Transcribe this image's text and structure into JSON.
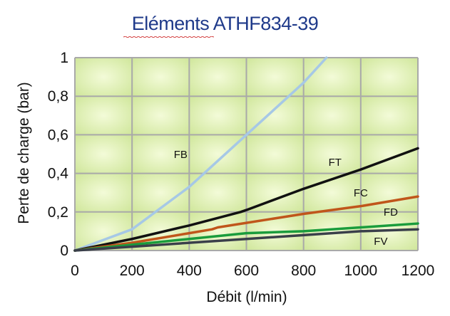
{
  "chart_data": {
    "type": "line",
    "title": "Eléments ATHF834-39",
    "xlabel": "Débit (l/min)",
    "ylabel": "Perte de charge (bar)",
    "xlim": [
      0,
      1200
    ],
    "ylim": [
      0,
      1
    ],
    "x_ticks": [
      0,
      200,
      400,
      600,
      800,
      1000,
      1200
    ],
    "x_tick_labels": [
      "0",
      "200",
      "400",
      "600",
      "800",
      "1000",
      "1200"
    ],
    "y_ticks": [
      0,
      0.2,
      0.4,
      0.6,
      0.8,
      1
    ],
    "y_tick_labels": [
      "0",
      "0,2",
      "0,4",
      "0,6",
      "0,8",
      "1"
    ],
    "grid": true,
    "background_color": "#dff0b0",
    "grid_color": "#a9a9a9",
    "series": [
      {
        "name": "FB",
        "color": "#a6c8e6",
        "label_at": [
          370,
          0.48
        ],
        "x": [
          0,
          200,
          400,
          600,
          800,
          880
        ],
        "y": [
          0,
          0.11,
          0.33,
          0.6,
          0.87,
          1.0
        ]
      },
      {
        "name": "FT",
        "color": "#111111",
        "label_at": [
          910,
          0.44
        ],
        "x": [
          0,
          200,
          400,
          580,
          600,
          800,
          1000,
          1200
        ],
        "y": [
          0,
          0.06,
          0.13,
          0.2,
          0.21,
          0.32,
          0.42,
          0.53
        ]
      },
      {
        "name": "FC",
        "color": "#c0561b",
        "label_at": [
          1000,
          0.28
        ],
        "x": [
          0,
          200,
          400,
          480,
          500,
          800,
          1000,
          1200
        ],
        "y": [
          0,
          0.04,
          0.09,
          0.11,
          0.12,
          0.19,
          0.23,
          0.28
        ]
      },
      {
        "name": "FD",
        "color": "#1a9c3c",
        "label_at": [
          1105,
          0.18
        ],
        "x": [
          0,
          200,
          400,
          600,
          800,
          1000,
          1200
        ],
        "y": [
          0,
          0.03,
          0.06,
          0.09,
          0.1,
          0.12,
          0.14
        ]
      },
      {
        "name": "FV",
        "color": "#3a3f4a",
        "label_at": [
          1070,
          0.03
        ],
        "x": [
          0,
          200,
          400,
          600,
          800,
          1000,
          1200
        ],
        "y": [
          0,
          0.02,
          0.04,
          0.06,
          0.08,
          0.1,
          0.11
        ]
      }
    ]
  }
}
